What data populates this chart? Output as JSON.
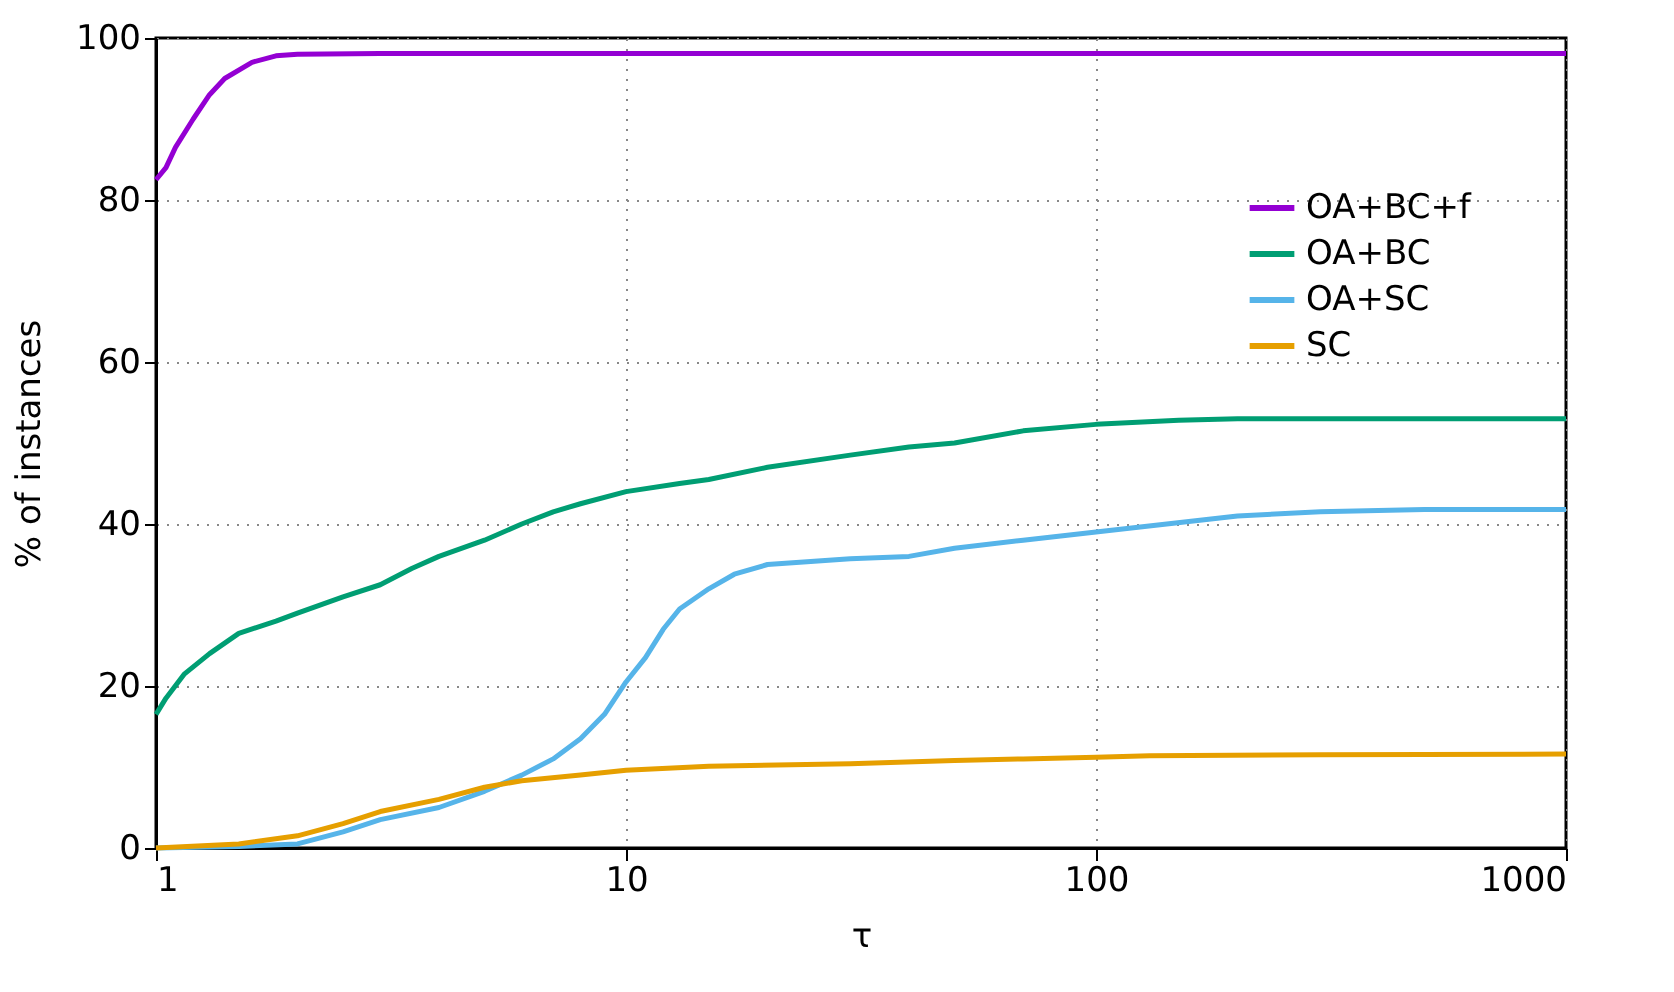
{
  "chart_data": {
    "type": "line",
    "xlabel": "τ",
    "ylabel": "% of instances",
    "log": "x",
    "xlim": [
      1,
      1000
    ],
    "xticks": [
      1,
      10,
      100,
      1000
    ],
    "ylim": [
      0,
      100
    ],
    "yticks": [
      0,
      20,
      40,
      60,
      80,
      100
    ],
    "grid": true,
    "legend": "top right",
    "line_style": "solid",
    "marker": "none",
    "series": [
      {
        "name": "OA+BC+f",
        "color": "#9400d3",
        "x": [
          1,
          1.05,
          1.1,
          1.2,
          1.3,
          1.4,
          1.6,
          1.8,
          2,
          3,
          10,
          100,
          1000
        ],
        "values": [
          82.5,
          84,
          86.5,
          90,
          93,
          95,
          97,
          97.8,
          98,
          98.1,
          98.1,
          98.1,
          98.1
        ]
      },
      {
        "name": "OA+BC",
        "color": "#009e73",
        "x": [
          1,
          1.05,
          1.15,
          1.3,
          1.5,
          1.8,
          2,
          2.5,
          3,
          3.5,
          4,
          5,
          6,
          7,
          8,
          10,
          13,
          15,
          20,
          30,
          40,
          50,
          70,
          100,
          150,
          200,
          1000
        ],
        "values": [
          16.5,
          18.5,
          21.5,
          24,
          26.5,
          28,
          29,
          31,
          32.5,
          34.5,
          36,
          38,
          40,
          41.5,
          42.5,
          44,
          45,
          45.5,
          47,
          48.5,
          49.5,
          50,
          51.5,
          52.3,
          52.8,
          53,
          53
        ]
      },
      {
        "name": "OA+SC",
        "color": "#56b4e9",
        "x": [
          1,
          1.5,
          2,
          2.5,
          3,
          4,
          5,
          6,
          7,
          8,
          9,
          10,
          11,
          12,
          13,
          15,
          17,
          20,
          30,
          40,
          50,
          70,
          100,
          200,
          300,
          500,
          1000
        ],
        "values": [
          0,
          0.2,
          0.5,
          2,
          3.5,
          5,
          7,
          9,
          11,
          13.5,
          16.5,
          20.5,
          23.5,
          27,
          29.5,
          32,
          33.8,
          35,
          35.7,
          36,
          37,
          38,
          39,
          41,
          41.5,
          41.8,
          41.8
        ]
      },
      {
        "name": "SC",
        "color": "#e69f00",
        "x": [
          1,
          1.5,
          2,
          2.5,
          3,
          4,
          5,
          6,
          8,
          10,
          15,
          30,
          50,
          70,
          100,
          130,
          300,
          1000
        ],
        "values": [
          0,
          0.5,
          1.5,
          3,
          4.5,
          6,
          7.5,
          8.3,
          9,
          9.6,
          10.1,
          10.4,
          10.8,
          11,
          11.2,
          11.4,
          11.5,
          11.6
        ]
      }
    ]
  }
}
